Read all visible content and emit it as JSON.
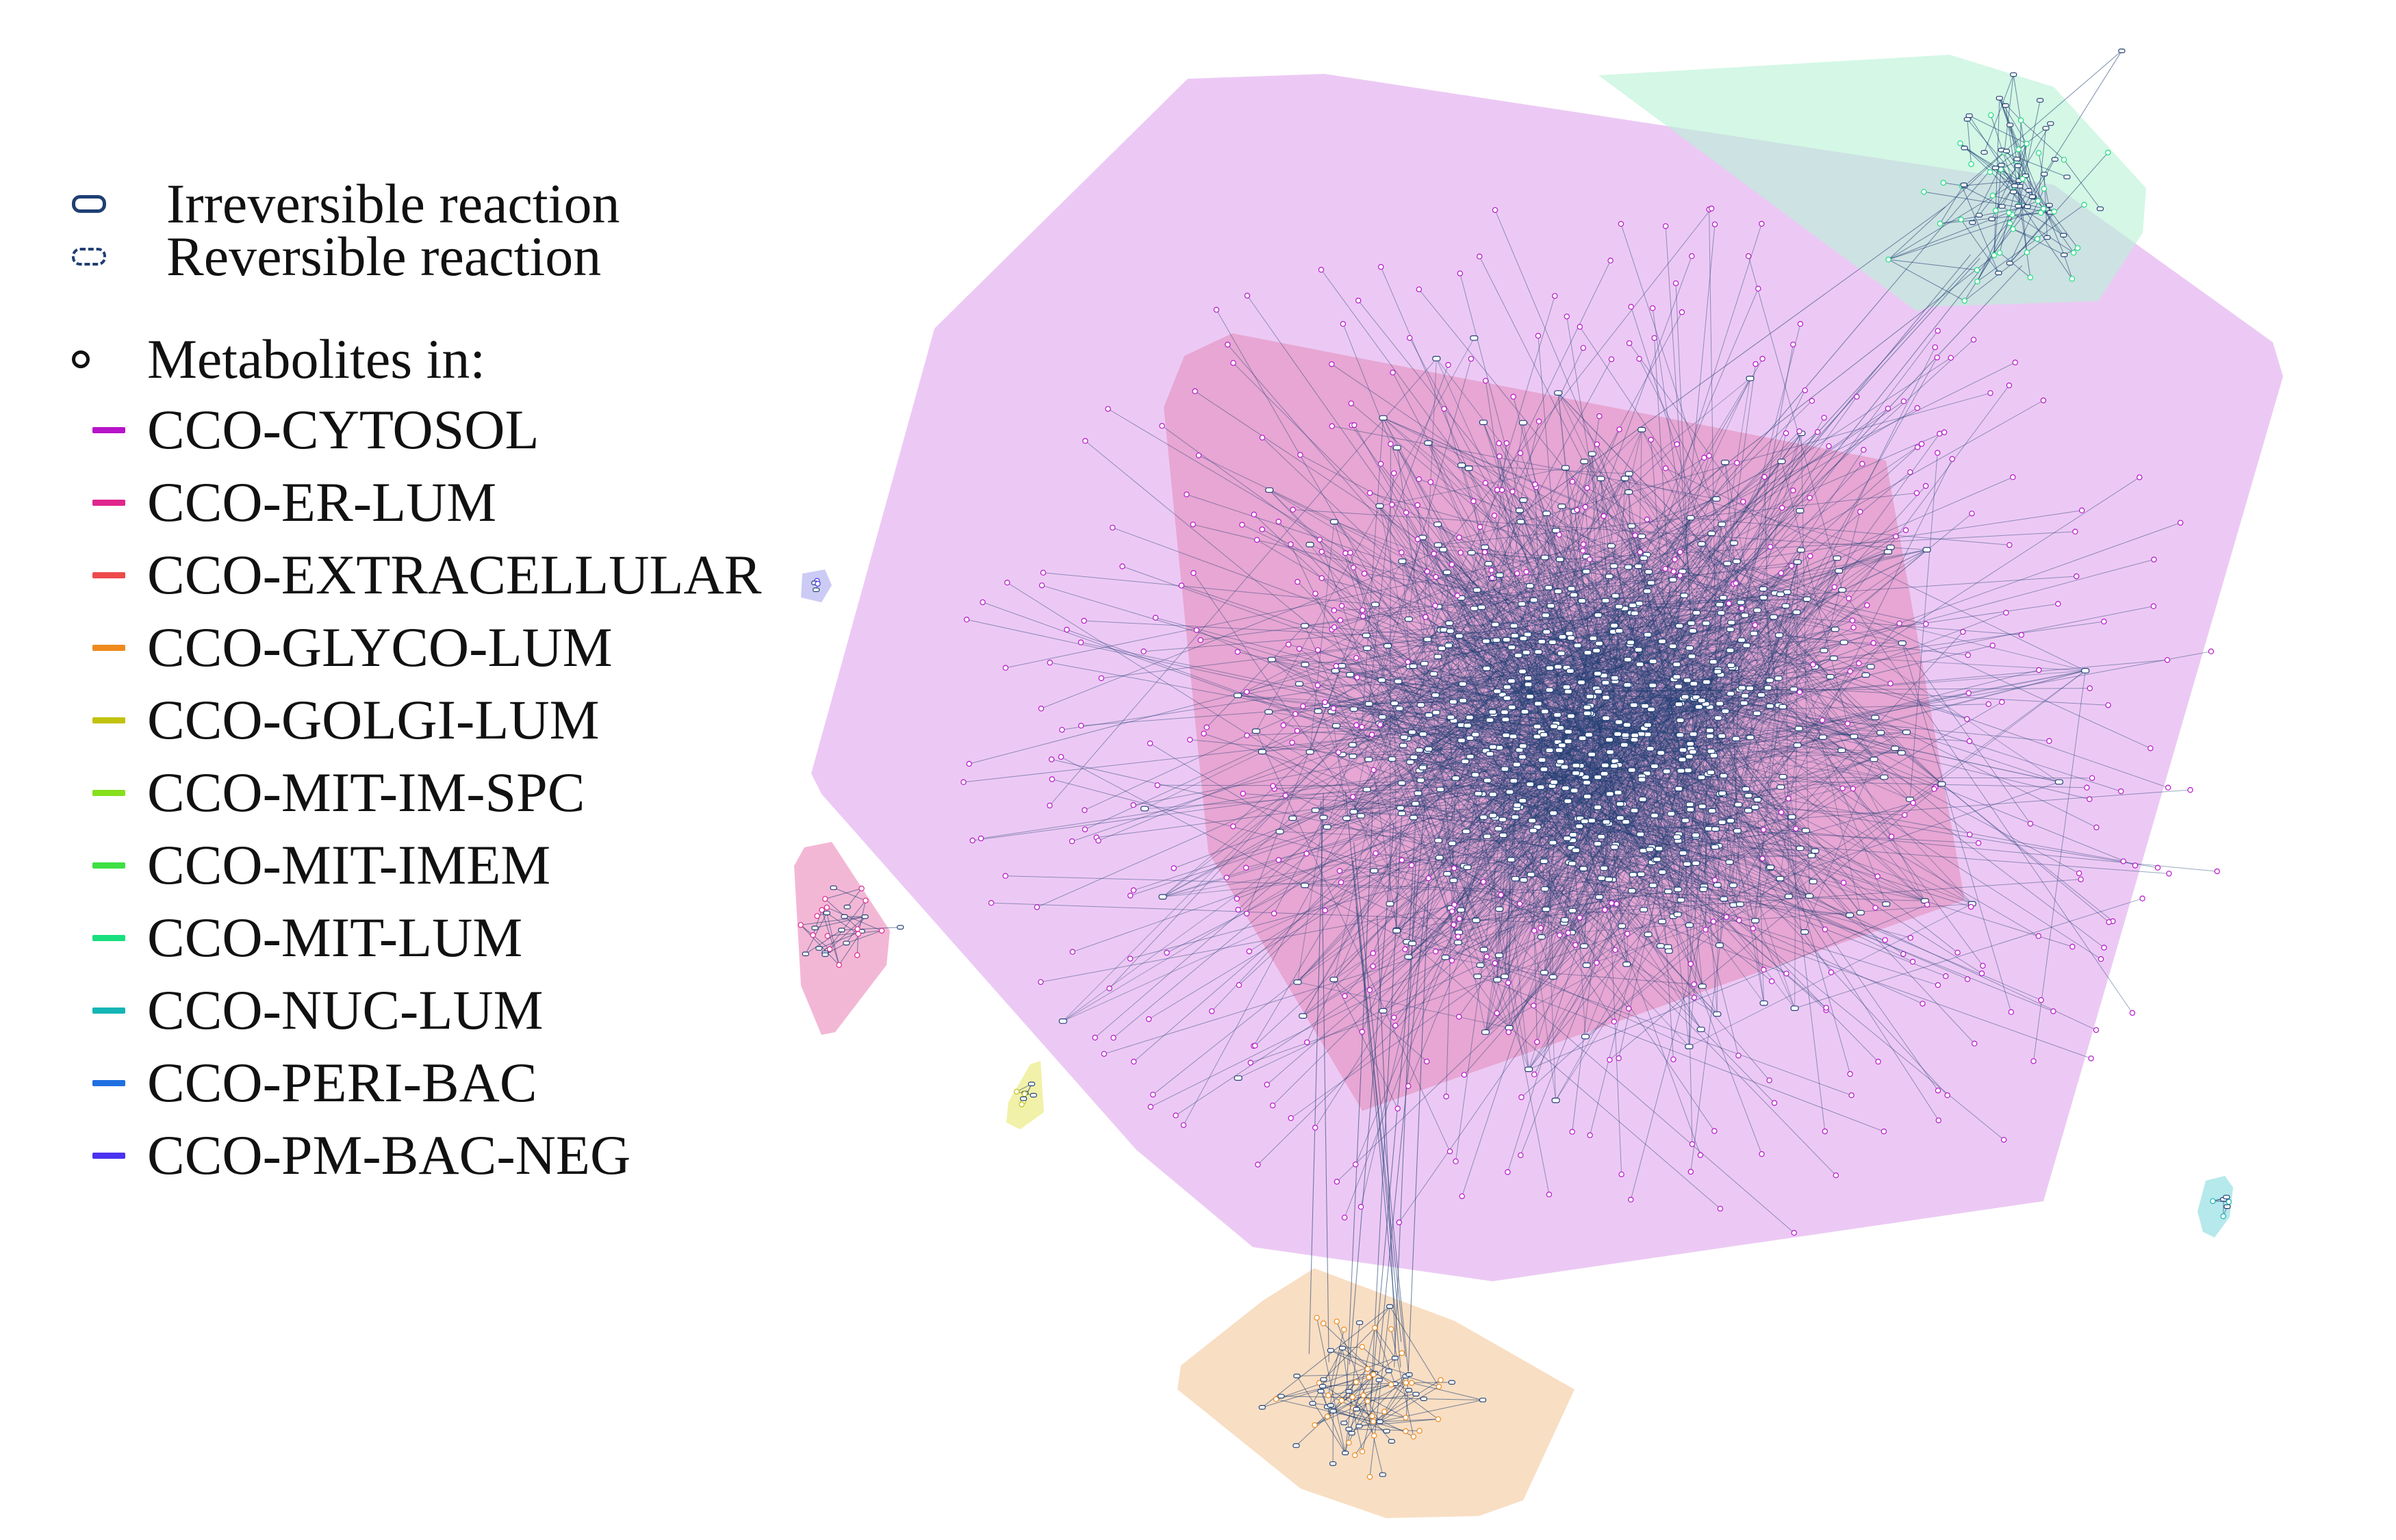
{
  "legend": {
    "irreversible_label": "Irreversible reaction",
    "reversible_label": "Reversible reaction",
    "metabolites_label": "Metabolites in:",
    "compartments": [
      {
        "name": "CCO-CYTOSOL",
        "color": "#b714c9"
      },
      {
        "name": "CCO-ER-LUM",
        "color": "#e0268d"
      },
      {
        "name": "CCO-EXTRACELLULAR",
        "color": "#ee4a4a"
      },
      {
        "name": "CCO-GLYCO-LUM",
        "color": "#ee8a1e"
      },
      {
        "name": "CCO-GOLGI-LUM",
        "color": "#c2c20e"
      },
      {
        "name": "CCO-MIT-IM-SPC",
        "color": "#86e01b"
      },
      {
        "name": "CCO-MIT-IMEM",
        "color": "#3ee043"
      },
      {
        "name": "CCO-MIT-LUM",
        "color": "#18df7f"
      },
      {
        "name": "CCO-NUC-LUM",
        "color": "#14b5b5"
      },
      {
        "name": "CCO-PERI-BAC",
        "color": "#1f6fe0"
      },
      {
        "name": "CCO-PM-BAC-NEG",
        "color": "#4a33f0"
      }
    ]
  },
  "colors": {
    "edge": "#1f3f73",
    "node_fill": "#ffffff",
    "cytosol_hull": "#e4b4f0",
    "er_hull": "#e59ac8",
    "mit_lum_hull": "#b9f2d6",
    "glyco_hull": "#f7d8b8",
    "golgi_hull": "#eff0a0",
    "er_small_hull": "#f2afd2",
    "nuc_hull": "#aee7e9",
    "pm_hull": "#c7c5f4"
  }
}
